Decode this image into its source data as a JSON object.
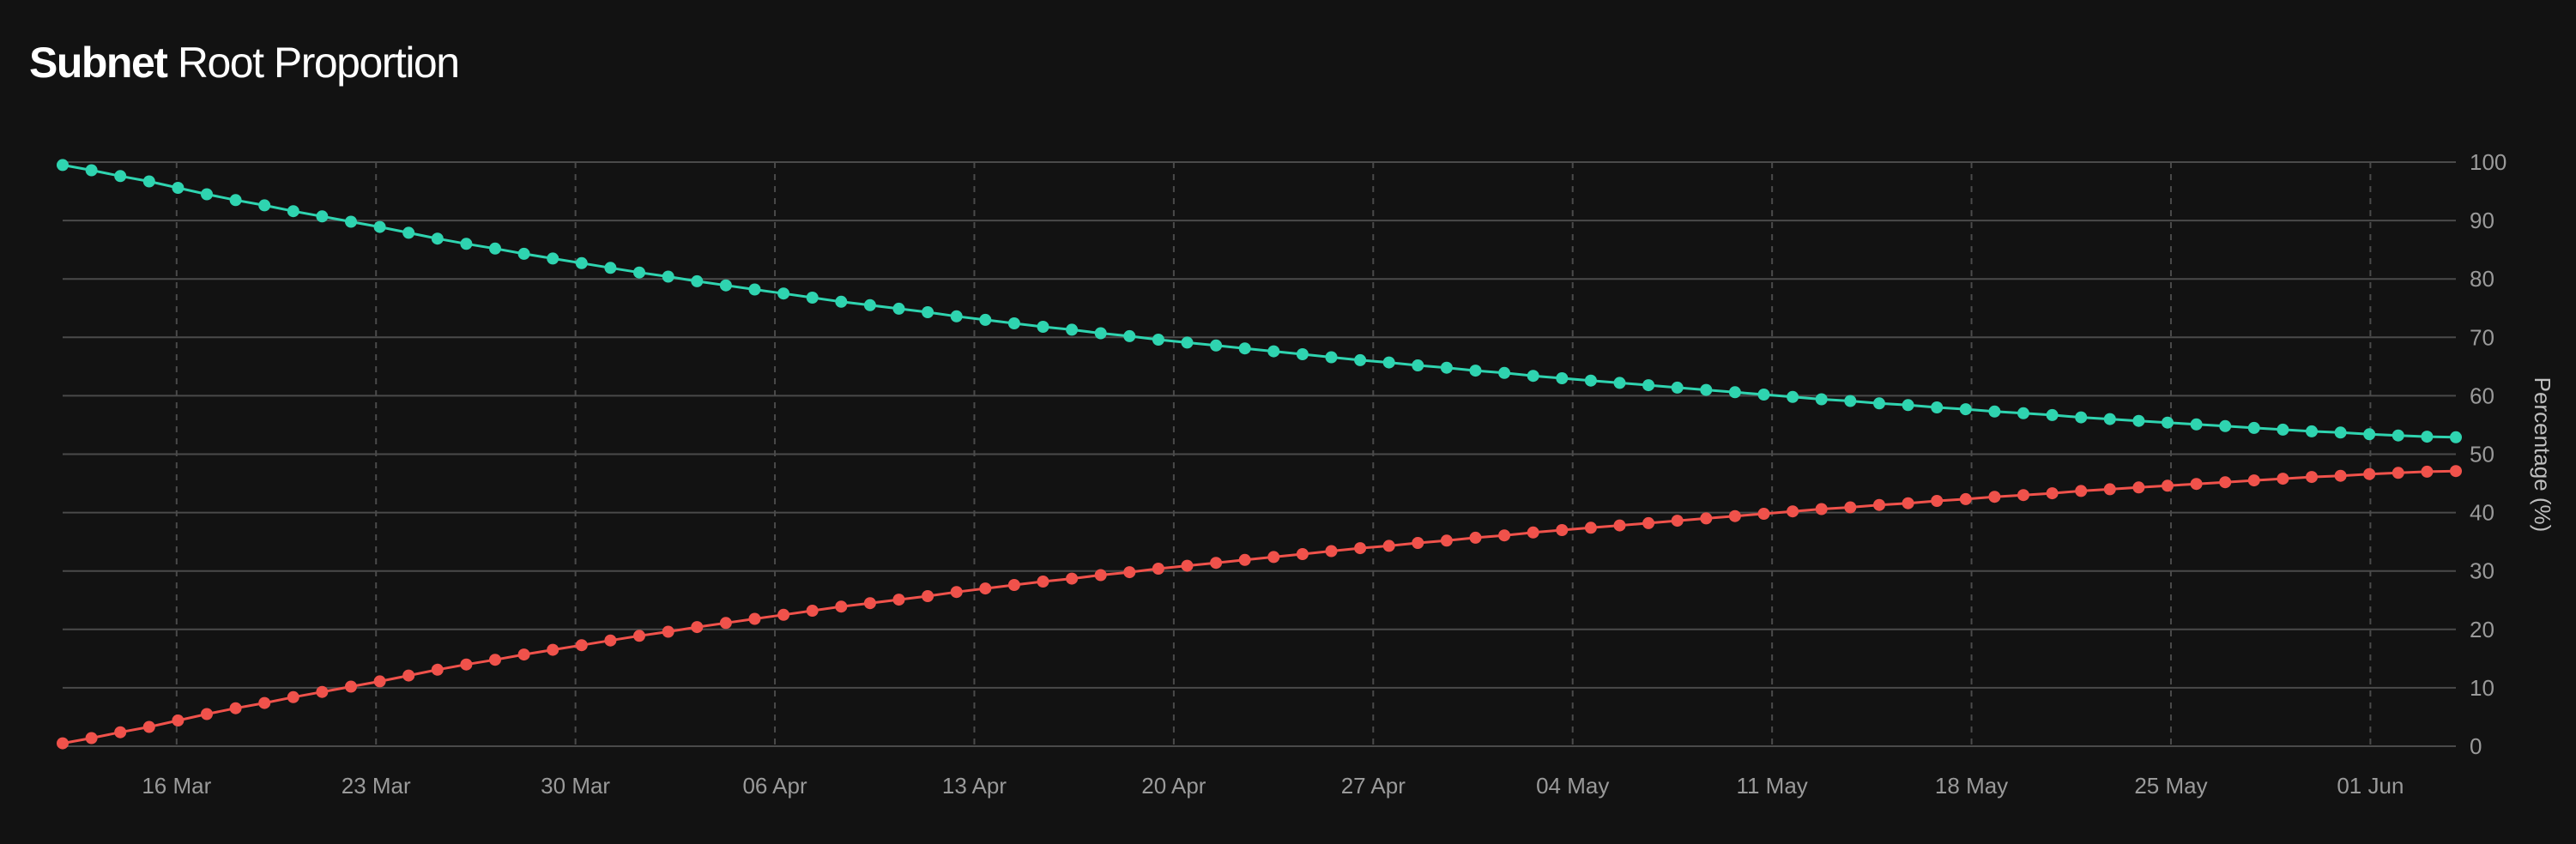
{
  "title": {
    "strong": "Subnet",
    "rest": "Root Proportion"
  },
  "colors": {
    "background": "#121212",
    "grid": "#4a4a4a",
    "tick_text": "#9a9a9a",
    "teal": "#2fd4b0",
    "red": "#f0524b"
  },
  "chart_data": {
    "type": "line",
    "x_start": "2025-03-12",
    "x_end": "2025-06-04",
    "points_per_series": 84,
    "xticks": [
      {
        "date": "2025-03-16",
        "label": "16 Mar"
      },
      {
        "date": "2025-03-23",
        "label": "23 Mar"
      },
      {
        "date": "2025-03-30",
        "label": "30 Mar"
      },
      {
        "date": "2025-04-06",
        "label": "06 Apr"
      },
      {
        "date": "2025-04-13",
        "label": "13 Apr"
      },
      {
        "date": "2025-04-20",
        "label": "20 Apr"
      },
      {
        "date": "2025-04-27",
        "label": "27 Apr"
      },
      {
        "date": "2025-05-04",
        "label": "04 May"
      },
      {
        "date": "2025-05-11",
        "label": "11 May"
      },
      {
        "date": "2025-05-18",
        "label": "18 May"
      },
      {
        "date": "2025-05-25",
        "label": "25 May"
      },
      {
        "date": "2025-06-01",
        "label": "01 Jun"
      }
    ],
    "yticks": [
      0,
      10,
      20,
      30,
      40,
      50,
      60,
      70,
      80,
      90,
      100
    ],
    "ylim": [
      0,
      100
    ],
    "ylabel": "Percentage (%)",
    "y_axis_side": "right",
    "grid": {
      "horizontal": "solid",
      "vertical": "dashed"
    },
    "series": [
      {
        "color": "#2fd4b0",
        "values": [
          99.5,
          98.6,
          97.6,
          96.7,
          95.6,
          94.5,
          93.5,
          92.6,
          91.6,
          90.7,
          89.8,
          88.9,
          87.9,
          86.9,
          86.0,
          85.2,
          84.3,
          83.5,
          82.7,
          81.9,
          81.1,
          80.4,
          79.6,
          78.9,
          78.2,
          77.5,
          76.8,
          76.1,
          75.5,
          74.9,
          74.3,
          73.6,
          73.0,
          72.4,
          71.8,
          71.3,
          70.7,
          70.2,
          69.6,
          69.1,
          68.6,
          68.1,
          67.6,
          67.1,
          66.6,
          66.1,
          65.7,
          65.2,
          64.8,
          64.3,
          63.9,
          63.4,
          63.0,
          62.6,
          62.2,
          61.8,
          61.4,
          61.0,
          60.6,
          60.2,
          59.8,
          59.4,
          59.1,
          58.7,
          58.4,
          58.0,
          57.7,
          57.3,
          57.0,
          56.7,
          56.3,
          56.0,
          55.7,
          55.4,
          55.1,
          54.8,
          54.5,
          54.2,
          53.9,
          53.7,
          53.4,
          53.2,
          53.0,
          52.9
        ]
      },
      {
        "color": "#f0524b",
        "values": [
          0.5,
          1.4,
          2.4,
          3.3,
          4.4,
          5.5,
          6.5,
          7.4,
          8.4,
          9.3,
          10.2,
          11.1,
          12.1,
          13.1,
          14.0,
          14.8,
          15.7,
          16.5,
          17.3,
          18.1,
          18.9,
          19.6,
          20.4,
          21.1,
          21.8,
          22.5,
          23.2,
          23.9,
          24.5,
          25.1,
          25.7,
          26.4,
          27.0,
          27.6,
          28.2,
          28.7,
          29.3,
          29.8,
          30.4,
          30.9,
          31.4,
          31.9,
          32.4,
          32.9,
          33.4,
          33.9,
          34.3,
          34.8,
          35.2,
          35.7,
          36.1,
          36.6,
          37.0,
          37.4,
          37.8,
          38.2,
          38.6,
          39.0,
          39.4,
          39.8,
          40.2,
          40.6,
          40.9,
          41.3,
          41.6,
          42.0,
          42.3,
          42.7,
          43.0,
          43.3,
          43.7,
          44.0,
          44.3,
          44.6,
          44.9,
          45.2,
          45.5,
          45.8,
          46.1,
          46.3,
          46.6,
          46.8,
          47.0,
          47.1
        ]
      }
    ]
  }
}
